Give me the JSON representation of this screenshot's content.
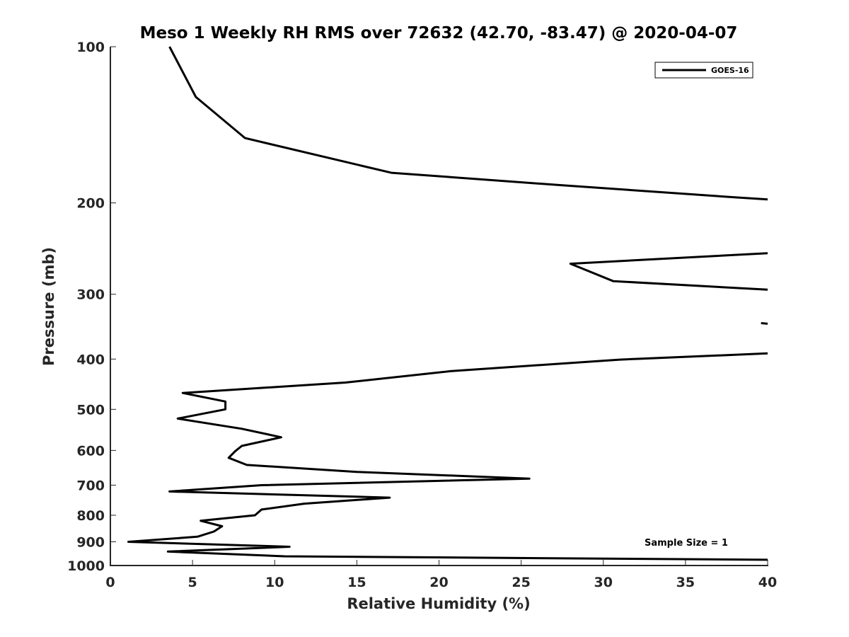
{
  "chart_data": {
    "type": "line",
    "title": "Meso 1 Weekly RH RMS over 72632 (42.70, -83.47) @ 2020-04-07",
    "xlabel": "Relative Humidity (%)",
    "ylabel": "Pressure (mb)",
    "xlim": [
      0,
      40
    ],
    "ylim": [
      100,
      1000
    ],
    "y_scale": "log",
    "y_reversed": true,
    "grid": false,
    "x_ticks": [
      0,
      5,
      10,
      15,
      20,
      25,
      30,
      35,
      40
    ],
    "y_ticks": [
      100,
      200,
      300,
      400,
      500,
      600,
      700,
      800,
      900,
      1000
    ],
    "legend": {
      "position": "top-right",
      "entries": [
        "GOES-16"
      ]
    },
    "annotation": "Sample Size = 1",
    "series": [
      {
        "name": "GOES-16",
        "color": "#000000",
        "segments": [
          [
            {
              "x": 3.6,
              "p": 100
            },
            {
              "x": 5.2,
              "p": 125
            },
            {
              "x": 8.2,
              "p": 150
            },
            {
              "x": 17.1,
              "p": 175
            },
            {
              "x": 27.5,
              "p": 185
            },
            {
              "x": 37.9,
              "p": 195
            },
            {
              "x": 40.0,
              "p": 197
            }
          ],
          [
            {
              "x": 40.0,
              "p": 250
            },
            {
              "x": 28.0,
              "p": 262
            },
            {
              "x": 30.6,
              "p": 283
            },
            {
              "x": 40.0,
              "p": 294
            }
          ],
          [
            {
              "x": 39.6,
              "p": 341
            },
            {
              "x": 40.0,
              "p": 342
            }
          ],
          [
            {
              "x": 40.0,
              "p": 390
            },
            {
              "x": 31.0,
              "p": 401
            },
            {
              "x": 20.7,
              "p": 422
            },
            {
              "x": 14.3,
              "p": 444
            },
            {
              "x": 4.4,
              "p": 465
            },
            {
              "x": 7.0,
              "p": 483
            },
            {
              "x": 7.0,
              "p": 500
            },
            {
              "x": 4.1,
              "p": 521
            },
            {
              "x": 8.0,
              "p": 545
            },
            {
              "x": 10.4,
              "p": 566
            },
            {
              "x": 8.0,
              "p": 588
            },
            {
              "x": 7.6,
              "p": 602
            },
            {
              "x": 7.2,
              "p": 620
            },
            {
              "x": 8.3,
              "p": 640
            },
            {
              "x": 15.0,
              "p": 660
            },
            {
              "x": 25.5,
              "p": 680
            },
            {
              "x": 9.2,
              "p": 700
            },
            {
              "x": 3.6,
              "p": 720
            },
            {
              "x": 17.0,
              "p": 740
            },
            {
              "x": 11.8,
              "p": 760
            },
            {
              "x": 9.2,
              "p": 780
            },
            {
              "x": 8.8,
              "p": 800
            },
            {
              "x": 5.5,
              "p": 820
            },
            {
              "x": 6.8,
              "p": 840
            },
            {
              "x": 6.3,
              "p": 860
            },
            {
              "x": 5.3,
              "p": 880
            },
            {
              "x": 1.1,
              "p": 900
            },
            {
              "x": 10.9,
              "p": 920
            },
            {
              "x": 3.5,
              "p": 940
            },
            {
              "x": 10.6,
              "p": 960
            },
            {
              "x": 40.0,
              "p": 975
            }
          ]
        ]
      }
    ]
  }
}
